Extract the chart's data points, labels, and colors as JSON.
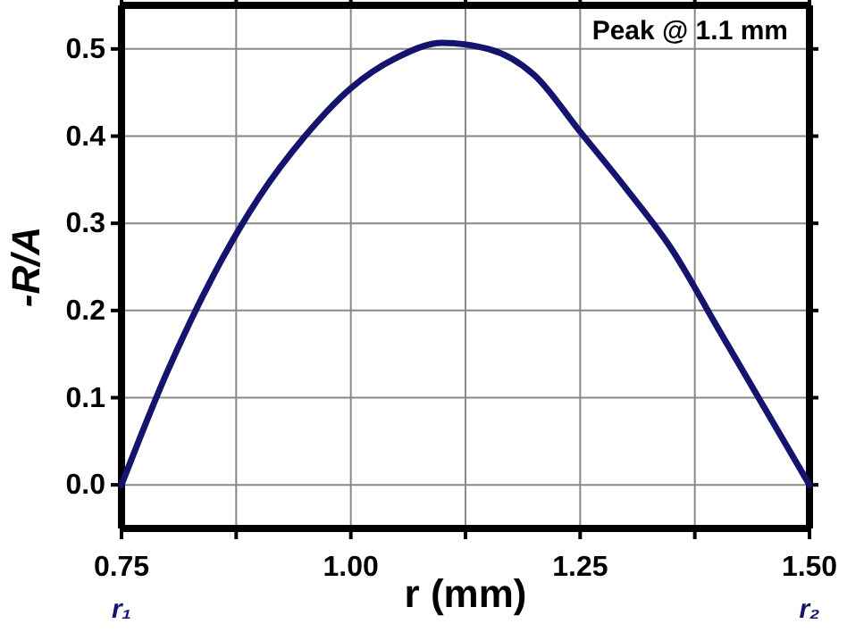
{
  "chart_data": {
    "type": "line",
    "xlabel": "r (mm)",
    "ylabel": "-R/A",
    "annotations": [
      "Peak @ 1.1 mm",
      "r₁",
      "r₂"
    ],
    "series": [
      {
        "color": "#14146e",
        "x": [
          0.75,
          0.8,
          0.85,
          0.9,
          0.95,
          1.0,
          1.05,
          1.1,
          1.15,
          1.2,
          1.25,
          1.3,
          1.35,
          1.4,
          1.45,
          1.5
        ],
        "values": [
          0,
          0.13,
          0.24,
          0.33,
          0.4,
          0.455,
          0.49,
          0.507,
          0.5,
          0.47,
          0.405,
          0.34,
          0.27,
          0.18,
          0.09,
          0
        ]
      }
    ],
    "xlim": [
      0.75,
      1.5
    ],
    "xticks": [
      {
        "value": 0.75,
        "label": "0.75"
      },
      {
        "value": 0.875,
        "label": null
      },
      {
        "value": 1.0,
        "label": "1.00"
      },
      {
        "value": 1.125,
        "label": null
      },
      {
        "value": 1.25,
        "label": "1.25"
      },
      {
        "value": 1.375,
        "label": null
      },
      {
        "value": 1.5,
        "label": "1.50"
      }
    ],
    "ylim": [
      -0.05,
      0.55
    ],
    "yticks": [
      {
        "value": 0,
        "label": "0.0"
      },
      0.1,
      0.2,
      0.3,
      0.4,
      0.5
    ],
    "grid": true,
    "marker": "none",
    "line_style": "solid"
  }
}
